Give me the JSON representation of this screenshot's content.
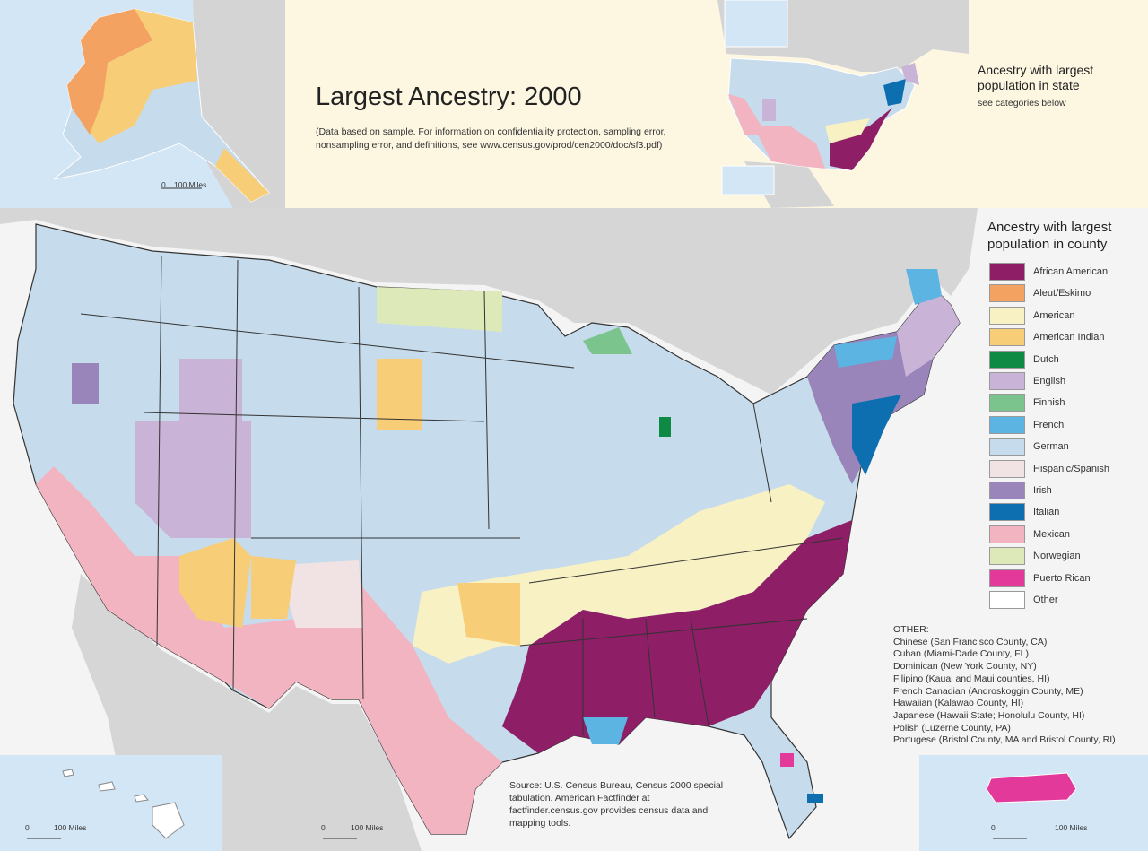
{
  "title": "Largest Ancestry: 2000",
  "subtitle": "(Data based on sample. For information on confidentiality protection, sampling error, nonsampling error, and definitions, see www.census.gov/prod/cen2000/doc/sf3.pdf)",
  "state_inset": {
    "title": "Ancestry with largest population in state",
    "note": "see categories below"
  },
  "legend": {
    "title": "Ancestry with largest population in county",
    "items": [
      {
        "label": "African American",
        "color": "#8e1e66"
      },
      {
        "label": "Aleut/Eskimo",
        "color": "#f4a261"
      },
      {
        "label": "American",
        "color": "#f8f1c4"
      },
      {
        "label": "American Indian",
        "color": "#f8cd78"
      },
      {
        "label": "Dutch",
        "color": "#0e8a45"
      },
      {
        "label": "English",
        "color": "#c9b3d6"
      },
      {
        "label": "Finnish",
        "color": "#7cc48e"
      },
      {
        "label": "French",
        "color": "#5cb4e2"
      },
      {
        "label": "German",
        "color": "#c6dbeb"
      },
      {
        "label": "Hispanic/Spanish",
        "color": "#f1e2e4"
      },
      {
        "label": "Irish",
        "color": "#9a85bb"
      },
      {
        "label": "Italian",
        "color": "#0d6fb0"
      },
      {
        "label": "Mexican",
        "color": "#f2b4c1"
      },
      {
        "label": "Norwegian",
        "color": "#dde9b8"
      },
      {
        "label": "Puerto Rican",
        "color": "#e2399a"
      },
      {
        "label": "Other",
        "color": "#ffffff"
      }
    ]
  },
  "other": {
    "title": "OTHER:",
    "items": [
      "Chinese (San Francisco County, CA)",
      "Cuban (Miami-Dade County, FL)",
      "Dominican (New York County, NY)",
      "Filipino (Kauai and Maui counties, HI)",
      "French Canadian (Androskoggin County, ME)",
      "Hawaiian (Kalawao County, HI)",
      "Japanese (Hawaii State; Honolulu County, HI)",
      "Polish (Luzerne County, PA)",
      "Portugese (Bristol County, MA and Bristol County, RI)"
    ]
  },
  "source": "Source: U.S. Census Bureau, Census 2000 special tabulation. American Factfinder at factfinder.census.gov provides census data and mapping tools.",
  "scale_bar": {
    "zero": "0",
    "label": "100 Miles"
  }
}
